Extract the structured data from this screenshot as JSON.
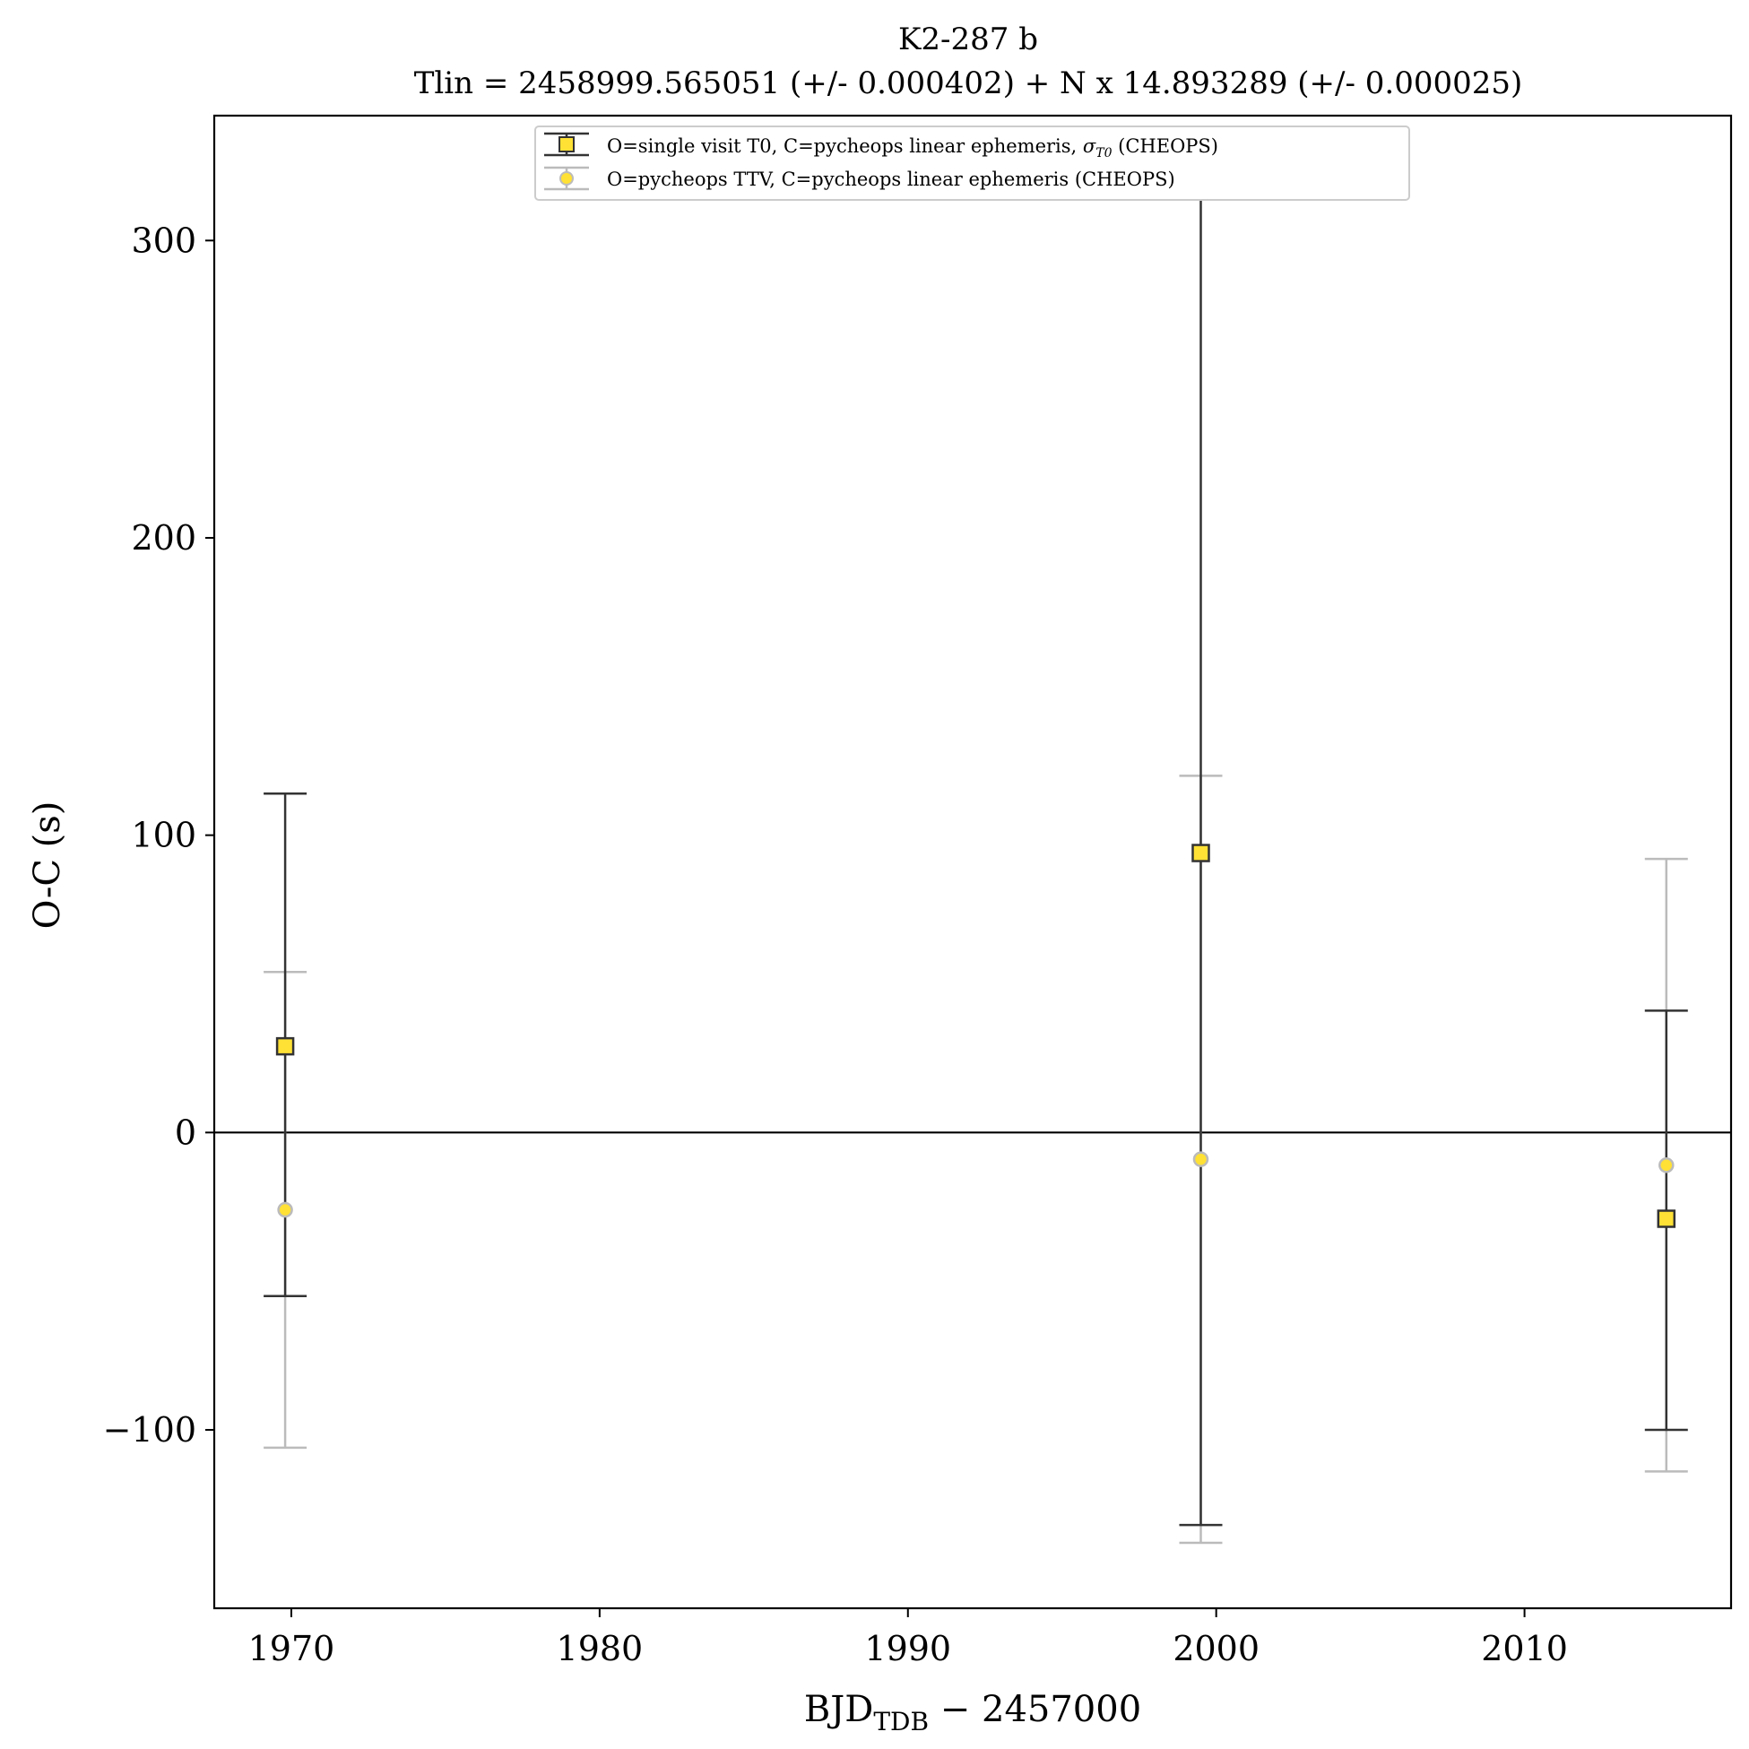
{
  "chart_data": {
    "type": "scatter",
    "title": "K2-287 b",
    "subtitle": "Tlin = 2458999.565051 (+/- 0.000402) + N x 14.893289 (+/- 0.000025)",
    "xlabel": "BJD_TDB − 2457000",
    "xlabel_main": "BJD",
    "xlabel_sub": "TDB",
    "xlabel_tail": " − 2457000",
    "ylabel": "O-C (s)",
    "xlim": [
      1967.5,
      2016.7
    ],
    "ylim": [
      -160,
      342
    ],
    "xticks": [
      1970,
      1980,
      1990,
      2000,
      2010
    ],
    "yticks": [
      -100,
      0,
      100,
      200,
      300
    ],
    "ytick_labels": [
      "−100",
      "0",
      "100",
      "200",
      "300"
    ],
    "grid": false,
    "zero_line": 0,
    "legend_position": "top-center",
    "series": [
      {
        "name": "O=single visit T0, C=pycheops linear ephemeris, σT0 (CHEOPS)",
        "name_prefix": "O=single visit T0, C=pycheops linear ephemeris, ",
        "name_sigma": "σ",
        "name_sigma_sub": "T0",
        "name_suffix": " (CHEOPS)",
        "marker": "square",
        "color": "#FFE135",
        "edge_color": "#333333",
        "errorbar_color": "#333333",
        "points": [
          {
            "x": 1969.8,
            "y": 29,
            "err_low": 84,
            "err_high": 85
          },
          {
            "x": 1999.5,
            "y": 94,
            "err_low": 226,
            "err_high": 226
          },
          {
            "x": 2014.6,
            "y": -29,
            "err_low": 71,
            "err_high": 70
          }
        ]
      },
      {
        "name": "O=pycheops TTV, C=pycheops linear ephemeris (CHEOPS)",
        "marker": "circle",
        "color": "#FFE135",
        "edge_color": "#BBBBBB",
        "errorbar_color": "#BBBBBB",
        "points": [
          {
            "x": 1969.8,
            "y": -26,
            "err_low": 80,
            "err_high": 80
          },
          {
            "x": 1999.5,
            "y": -9,
            "err_low": 129,
            "err_high": 129
          },
          {
            "x": 2014.6,
            "y": -11,
            "err_low": 103,
            "err_high": 103
          }
        ]
      }
    ]
  }
}
